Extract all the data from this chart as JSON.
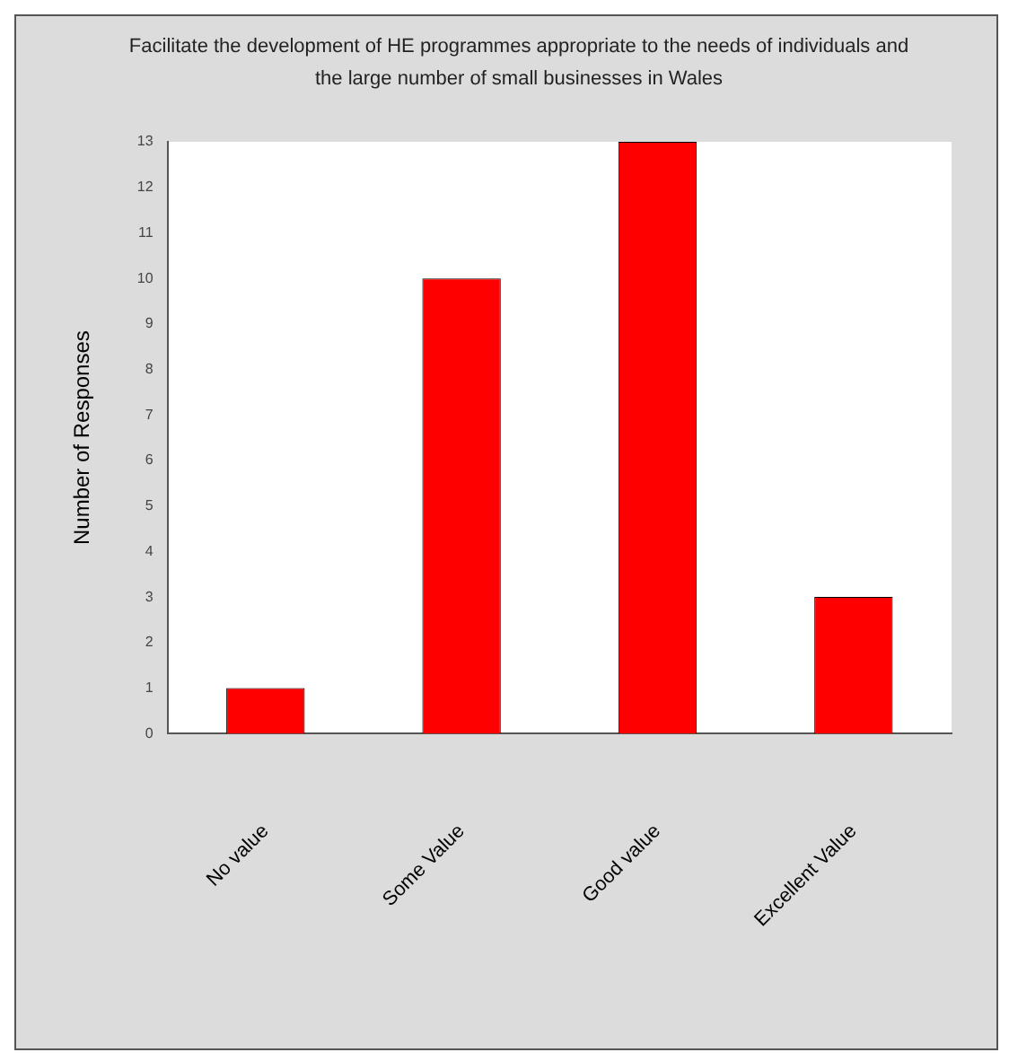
{
  "chart_data": {
    "type": "bar",
    "title": "Facilitate the development of HE programmes appropriate to the needs of individuals and the large number of small businesses in Wales",
    "ylabel": "Number of Responses",
    "categories": [
      "No value",
      "Some Value",
      "Good value",
      "Excellent Value"
    ],
    "values": [
      1,
      10,
      13,
      3
    ],
    "color": "#ff0000",
    "ylim": [
      0,
      13
    ],
    "yticks": [
      0,
      1,
      2,
      3,
      4,
      5,
      6,
      7,
      8,
      9,
      10,
      11,
      12,
      13
    ],
    "grid": false,
    "legend": false
  }
}
